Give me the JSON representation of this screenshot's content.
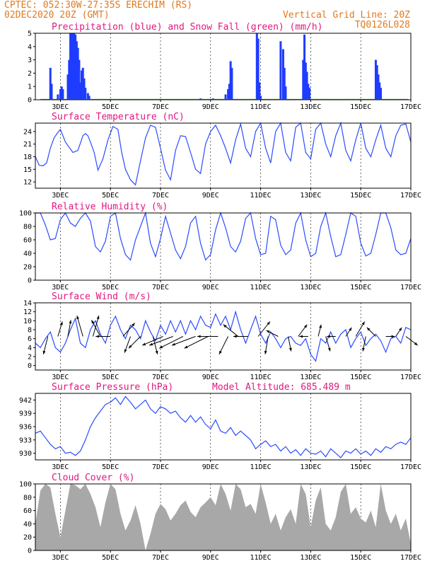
{
  "header": {
    "line1_left": "CPTEC:   052:30W-27:35S   ERECHIM (RS)",
    "line2_left": "02DEC2020 20Z (GMT)",
    "line2_right": "Vertical Grid Line: 20Z",
    "line3_right": "TQ0126L028"
  },
  "x_ticks": [
    "3DEC",
    "5DEC",
    "7DEC",
    "9DEC",
    "11DEC",
    "13DEC",
    "15DEC",
    "17DEC"
  ],
  "colors": {
    "header": "#e07a1f",
    "title": "#e0177f",
    "line": "#2b4bff",
    "bar": "#1f3cff",
    "snow": "#22aa22",
    "cloud": "#a8a8a8"
  },
  "chart_data": [
    {
      "type": "bar",
      "title": "Precipitation (blue) and Snow Fall (green) (mm/h)",
      "ylim": [
        0,
        5
      ],
      "yticks": [
        0,
        1,
        2,
        3,
        4,
        5
      ],
      "series": [
        {
          "name": "Precipitation",
          "x": [
            2.6,
            2.65,
            2.9,
            3.0,
            3.05,
            3.1,
            3.3,
            3.35,
            3.4,
            3.45,
            3.5,
            3.55,
            3.6,
            3.65,
            3.7,
            3.75,
            3.8,
            3.85,
            3.9,
            3.95,
            4.0,
            4.1,
            4.15,
            8.6,
            9.1,
            9.6,
            9.7,
            9.75,
            9.8,
            9.85,
            10.85,
            10.9,
            10.95,
            11.0,
            11.8,
            11.9,
            11.95,
            12.0,
            12.7,
            12.75,
            12.8,
            12.85,
            12.9,
            12.95,
            15.6,
            15.65,
            15.7,
            15.75,
            15.8
          ],
          "values": [
            2.4,
            1.2,
            0.4,
            0.8,
            1.0,
            0.8,
            1.9,
            3.0,
            5.0,
            5.0,
            5.0,
            5.0,
            4.9,
            4.4,
            3.9,
            3.0,
            1.3,
            2.2,
            2.4,
            1.6,
            0.9,
            0.5,
            0.3,
            0.1,
            0.1,
            0.4,
            0.8,
            1.2,
            2.9,
            2.4,
            5.0,
            4.6,
            1.3,
            0.3,
            4.4,
            3.8,
            2.4,
            1.0,
            3.0,
            4.9,
            2.8,
            2.1,
            1.2,
            0.9,
            3.0,
            2.6,
            1.9,
            1.3,
            0.9
          ]
        },
        {
          "name": "Snow Fall",
          "x": [],
          "values": []
        }
      ]
    },
    {
      "type": "line",
      "title": "Surface Temperature (nC)",
      "ylim": [
        10.5,
        26
      ],
      "yticks": [
        12,
        15,
        18,
        21,
        24
      ],
      "x": [
        2.0,
        2.15,
        2.3,
        2.45,
        2.6,
        2.75,
        2.9,
        3.0,
        3.2,
        3.5,
        3.7,
        3.9,
        4.0,
        4.1,
        4.2,
        4.35,
        4.5,
        4.7,
        4.9,
        5.1,
        5.3,
        5.45,
        5.6,
        5.8,
        6.0,
        6.2,
        6.4,
        6.6,
        6.8,
        7.0,
        7.2,
        7.4,
        7.6,
        7.8,
        8.0,
        8.2,
        8.4,
        8.6,
        8.8,
        9.0,
        9.2,
        9.4,
        9.6,
        9.8,
        10.0,
        10.2,
        10.4,
        10.6,
        10.8,
        11.0,
        11.2,
        11.4,
        11.6,
        11.8,
        12.0,
        12.2,
        12.4,
        12.6,
        12.8,
        13.0,
        13.2,
        13.4,
        13.6,
        13.8,
        14.0,
        14.2,
        14.4,
        14.6,
        14.8,
        15.0,
        15.2,
        15.4,
        15.6,
        15.8,
        16.0,
        16.2,
        16.4,
        16.6,
        16.8,
        17.0
      ],
      "values": [
        18,
        16,
        15.8,
        16.5,
        20,
        22.5,
        23.8,
        24.5,
        21.5,
        19,
        19.5,
        23,
        23.5,
        23,
        21.5,
        19,
        14.8,
        17.5,
        22,
        25.2,
        24.5,
        19,
        15,
        12.5,
        11.3,
        17,
        22.5,
        25.5,
        25,
        20,
        14.8,
        12.5,
        19.5,
        23,
        22.8,
        19,
        15,
        14,
        21,
        24,
        25.5,
        23,
        20,
        16.5,
        22,
        25.8,
        20,
        18,
        24,
        26,
        20,
        16.5,
        24,
        26,
        19,
        17,
        25,
        26,
        19,
        17.5,
        24.5,
        26,
        21,
        18,
        23,
        26,
        19.5,
        17,
        22,
        26,
        20,
        18,
        22,
        25.5,
        20,
        18,
        23,
        25.5,
        25.8,
        21.5
      ]
    },
    {
      "type": "line",
      "title": "Relative Humidity (%)",
      "ylim": [
        0,
        100
      ],
      "yticks": [
        0,
        20,
        40,
        60,
        80,
        100
      ],
      "x": [
        2.0,
        2.2,
        2.4,
        2.6,
        2.8,
        3.0,
        3.2,
        3.4,
        3.6,
        3.8,
        4.0,
        4.2,
        4.4,
        4.6,
        4.8,
        5.0,
        5.2,
        5.4,
        5.6,
        5.8,
        6.0,
        6.2,
        6.4,
        6.6,
        6.8,
        7.0,
        7.2,
        7.4,
        7.6,
        7.8,
        8.0,
        8.2,
        8.4,
        8.6,
        8.8,
        9.0,
        9.2,
        9.4,
        9.6,
        9.8,
        10.0,
        10.2,
        10.4,
        10.6,
        10.8,
        11.0,
        11.2,
        11.4,
        11.6,
        11.8,
        12.0,
        12.2,
        12.4,
        12.6,
        12.8,
        13.0,
        13.2,
        13.4,
        13.6,
        13.8,
        14.0,
        14.2,
        14.4,
        14.6,
        14.8,
        15.0,
        15.2,
        15.4,
        15.6,
        15.8,
        16.0,
        16.2,
        16.4,
        16.6,
        16.8,
        17.0
      ],
      "values": [
        100,
        100,
        82,
        60,
        62,
        90,
        100,
        85,
        80,
        92,
        100,
        88,
        50,
        42,
        58,
        95,
        100,
        62,
        38,
        30,
        60,
        80,
        100,
        55,
        35,
        62,
        95,
        70,
        45,
        32,
        50,
        85,
        95,
        55,
        30,
        38,
        75,
        100,
        78,
        50,
        42,
        58,
        92,
        100,
        62,
        38,
        40,
        95,
        90,
        52,
        38,
        45,
        85,
        100,
        60,
        35,
        40,
        80,
        100,
        65,
        35,
        38,
        68,
        100,
        95,
        55,
        36,
        40,
        68,
        100,
        100,
        78,
        45,
        38,
        40,
        62
      ]
    },
    {
      "type": "line",
      "title": "Surface Wind (m/s)",
      "ylim": [
        -1,
        14
      ],
      "yticks": [
        0,
        2,
        4,
        6,
        8,
        10,
        12,
        14
      ],
      "x": [
        2.0,
        2.2,
        2.4,
        2.6,
        2.8,
        3.0,
        3.2,
        3.4,
        3.6,
        3.8,
        4.0,
        4.2,
        4.4,
        4.6,
        4.8,
        5.0,
        5.2,
        5.4,
        5.6,
        5.8,
        6.0,
        6.2,
        6.4,
        6.6,
        6.8,
        7.0,
        7.2,
        7.4,
        7.6,
        7.8,
        8.0,
        8.2,
        8.4,
        8.6,
        8.8,
        9.0,
        9.2,
        9.4,
        9.6,
        9.8,
        10.0,
        10.2,
        10.4,
        10.6,
        10.8,
        11.0,
        11.2,
        11.4,
        11.6,
        11.8,
        12.0,
        12.2,
        12.4,
        12.6,
        12.8,
        13.0,
        13.2,
        13.4,
        13.6,
        13.8,
        14.0,
        14.2,
        14.4,
        14.6,
        14.8,
        15.0,
        15.2,
        15.4,
        15.6,
        15.8,
        16.0,
        16.2,
        16.4,
        16.6,
        16.8,
        17.0
      ],
      "values": [
        5,
        4,
        6,
        7.5,
        4,
        3,
        5,
        8,
        10.5,
        5,
        4,
        8,
        10,
        7,
        5,
        9,
        11,
        8,
        6,
        9,
        8,
        6,
        10,
        7.5,
        5.5,
        9,
        7,
        10,
        7.5,
        10,
        7,
        10,
        8,
        11,
        9,
        8.5,
        11.5,
        9,
        11,
        8,
        12,
        8,
        5,
        8,
        11,
        7,
        5,
        7.5,
        6,
        4,
        6,
        6.5,
        5,
        4.5,
        6,
        2.5,
        1,
        6,
        5,
        7.5,
        5,
        7,
        8,
        4,
        6,
        7.5,
        4.5,
        6,
        7,
        5.5,
        3,
        6,
        6.5,
        5,
        8.5,
        8
      ],
      "arrows": [
        {
          "x": 2.5,
          "u": -1.5,
          "v": -6
        },
        {
          "x": 2.9,
          "u": 1.5,
          "v": 5
        },
        {
          "x": 3.3,
          "u": 1,
          "v": 5.5
        },
        {
          "x": 3.9,
          "u": -2,
          "v": 7
        },
        {
          "x": 4.3,
          "u": 2,
          "v": 7
        },
        {
          "x": 4.6,
          "u": -3,
          "v": 5.5
        },
        {
          "x": 5.0,
          "u": -5,
          "v": 0
        },
        {
          "x": 5.5,
          "u": 4,
          "v": 4.5
        },
        {
          "x": 5.8,
          "u": -2,
          "v": -5.5
        },
        {
          "x": 6.2,
          "u": -4,
          "v": -4
        },
        {
          "x": 6.7,
          "u": 1.5,
          "v": -6
        },
        {
          "x": 7.1,
          "u": -7,
          "v": -3
        },
        {
          "x": 7.5,
          "u": -8,
          "v": -3
        },
        {
          "x": 7.9,
          "u": -8,
          "v": -4
        },
        {
          "x": 8.4,
          "u": -8,
          "v": -3
        },
        {
          "x": 8.9,
          "u": -8,
          "v": -4
        },
        {
          "x": 9.3,
          "u": -7,
          "v": 0
        },
        {
          "x": 9.7,
          "u": -3,
          "v": -6
        },
        {
          "x": 10.1,
          "u": -5,
          "v": 4
        },
        {
          "x": 10.5,
          "u": -5,
          "v": 0
        },
        {
          "x": 10.9,
          "u": 4,
          "v": 5
        },
        {
          "x": 11.3,
          "u": -1,
          "v": -6
        },
        {
          "x": 11.7,
          "u": -4,
          "v": 2
        },
        {
          "x": 12.1,
          "u": 1,
          "v": -5
        },
        {
          "x": 12.5,
          "u": 3,
          "v": 4
        },
        {
          "x": 12.9,
          "u": -3,
          "v": 0
        },
        {
          "x": 13.3,
          "u": 1,
          "v": 4
        },
        {
          "x": 13.6,
          "u": 1.5,
          "v": -5
        },
        {
          "x": 14.0,
          "u": -3,
          "v": 0
        },
        {
          "x": 14.4,
          "u": 2,
          "v": 3
        },
        {
          "x": 14.8,
          "u": 3,
          "v": 5
        },
        {
          "x": 15.2,
          "u": -1,
          "v": -5
        },
        {
          "x": 15.6,
          "u": -3,
          "v": 3
        },
        {
          "x": 16.0,
          "u": 3,
          "v": 0
        },
        {
          "x": 16.4,
          "u": 2,
          "v": 3
        },
        {
          "x": 16.8,
          "u": 4,
          "v": -3
        }
      ]
    },
    {
      "type": "line",
      "title": "Surface Pressure (hPa)",
      "subtitle": "Model Altitude: 685.489  m",
      "ylim": [
        928.5,
        943.5
      ],
      "yticks": [
        930,
        933,
        936,
        939,
        942
      ],
      "x": [
        2.0,
        2.2,
        2.4,
        2.6,
        2.8,
        3.0,
        3.2,
        3.4,
        3.6,
        3.8,
        4.0,
        4.2,
        4.4,
        4.6,
        4.8,
        5.0,
        5.2,
        5.4,
        5.6,
        5.8,
        6.0,
        6.2,
        6.4,
        6.6,
        6.8,
        7.0,
        7.2,
        7.4,
        7.6,
        7.8,
        8.0,
        8.2,
        8.4,
        8.6,
        8.8,
        9.0,
        9.2,
        9.4,
        9.6,
        9.8,
        10.0,
        10.2,
        10.4,
        10.6,
        10.8,
        11.0,
        11.2,
        11.4,
        11.6,
        11.8,
        12.0,
        12.2,
        12.4,
        12.6,
        12.8,
        13.0,
        13.2,
        13.4,
        13.6,
        13.8,
        14.0,
        14.2,
        14.4,
        14.6,
        14.8,
        15.0,
        15.2,
        15.4,
        15.6,
        15.8,
        16.0,
        16.2,
        16.4,
        16.6,
        16.8,
        17.0
      ],
      "values": [
        934.5,
        935,
        933.5,
        932,
        931,
        931.5,
        930,
        930.2,
        929.5,
        930.5,
        933,
        936,
        938,
        939.5,
        941,
        941.5,
        942.5,
        941,
        942.8,
        941.5,
        940,
        941,
        942,
        940,
        939,
        940.5,
        940,
        939,
        939.5,
        938,
        937,
        938.5,
        937,
        938.2,
        936.5,
        935.5,
        937.5,
        935,
        934.5,
        935.8,
        934,
        935,
        934,
        933,
        931,
        932,
        932.8,
        931.5,
        932,
        930.5,
        931.5,
        930,
        930.8,
        929.5,
        931,
        930,
        929.8,
        930.5,
        929.2,
        931,
        930,
        929,
        930.5,
        930,
        931,
        929.8,
        930.5,
        929.5,
        931,
        930.2,
        931.5,
        931,
        932,
        932.5,
        932,
        933.5
      ]
    },
    {
      "type": "bar",
      "title": "Cloud Cover (%)",
      "ylim": [
        0,
        100
      ],
      "yticks": [
        0,
        20,
        40,
        60,
        80,
        100
      ],
      "x": [
        2.0,
        2.2,
        2.4,
        2.6,
        2.8,
        3.0,
        3.2,
        3.4,
        3.6,
        3.8,
        4.0,
        4.2,
        4.4,
        4.6,
        4.8,
        5.0,
        5.2,
        5.4,
        5.6,
        5.8,
        6.0,
        6.2,
        6.4,
        6.6,
        6.8,
        7.0,
        7.2,
        7.4,
        7.6,
        7.8,
        8.0,
        8.2,
        8.4,
        8.6,
        8.8,
        9.0,
        9.2,
        9.4,
        9.6,
        9.8,
        10.0,
        10.2,
        10.4,
        10.6,
        10.8,
        11.0,
        11.2,
        11.4,
        11.6,
        11.8,
        12.0,
        12.2,
        12.4,
        12.6,
        12.8,
        13.0,
        13.2,
        13.4,
        13.6,
        13.8,
        14.0,
        14.2,
        14.4,
        14.6,
        14.8,
        15.0,
        15.2,
        15.4,
        15.6,
        15.8,
        16.0,
        16.2,
        16.4,
        16.6,
        16.8,
        17.0
      ],
      "values": [
        40,
        90,
        100,
        95,
        55,
        20,
        60,
        100,
        98,
        92,
        100,
        85,
        65,
        35,
        72,
        100,
        92,
        55,
        30,
        45,
        68,
        40,
        0,
        25,
        55,
        70,
        62,
        45,
        55,
        68,
        75,
        58,
        50,
        65,
        72,
        80,
        68,
        100,
        85,
        60,
        100,
        92,
        65,
        70,
        55,
        100,
        72,
        40,
        55,
        30,
        50,
        62,
        40,
        100,
        85,
        35,
        75,
        95,
        40,
        30,
        50,
        88,
        100,
        55,
        65,
        48,
        42,
        60,
        35,
        100,
        60,
        40,
        55,
        30,
        48,
        10
      ]
    }
  ]
}
